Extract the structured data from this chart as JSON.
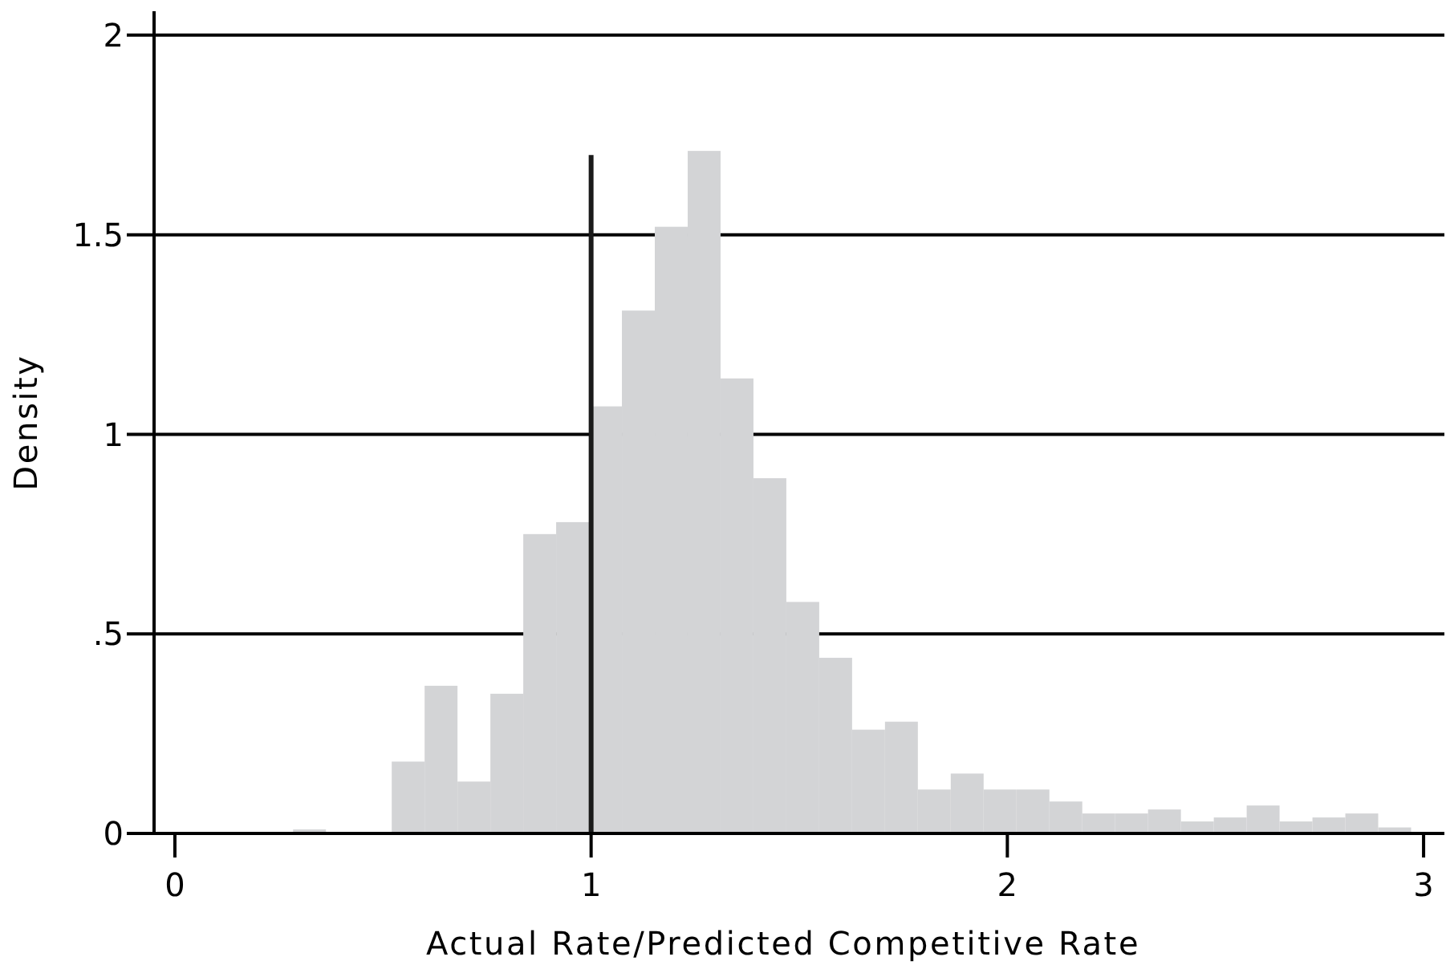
{
  "chart_data": {
    "type": "histogram",
    "xlabel": "Actual Rate/Predicted Competitive Rate",
    "ylabel": "Density",
    "bins": [
      0.284,
      0.363,
      0.442,
      0.521,
      0.6,
      0.679,
      0.758,
      0.837,
      0.916,
      0.995,
      1.074,
      1.153,
      1.232,
      1.311,
      1.39,
      1.469,
      1.548,
      1.627,
      1.706,
      1.785,
      1.864,
      1.943,
      2.022,
      2.101,
      2.18,
      2.259,
      2.338,
      2.417,
      2.496,
      2.575,
      2.654,
      2.733,
      2.812,
      2.891,
      2.97
    ],
    "series": [
      {
        "color": "#d3d4d6",
        "values": [
          0.01,
          0,
          0,
          0.18,
          0.37,
          0.13,
          0.35,
          0.75,
          0.78,
          1.07,
          1.31,
          1.52,
          1.71,
          1.14,
          0.89,
          0.58,
          0.44,
          0.26,
          0.28,
          0.11,
          0.15,
          0.11,
          0.11,
          0.08,
          0.05,
          0.05,
          0.06,
          0.03,
          0.04,
          0.07,
          0.03,
          0.04,
          0.05,
          0.015
        ]
      },
      {
        "type": "line",
        "x": [
          1,
          1
        ],
        "values": [
          0,
          1.7
        ],
        "color": "#1a1a1a"
      }
    ],
    "xlim": [
      -0.05,
      3.05
    ],
    "ylim": [
      0,
      2.06
    ],
    "xticks": [
      0,
      1,
      2,
      3
    ],
    "yticks": [
      0,
      {
        "value": 0.5,
        "label": ".5"
      },
      1,
      1.5,
      2
    ],
    "grid": "y"
  }
}
